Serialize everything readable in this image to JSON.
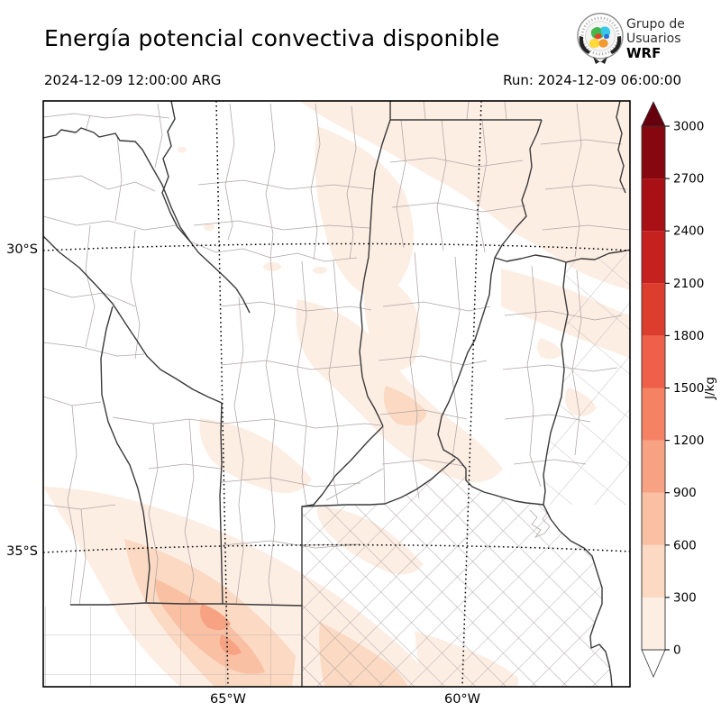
{
  "header": {
    "title": "Energía potencial convectiva disponible",
    "valid_time": "2024-12-09 12:00:00 ARG",
    "run_label": "Run: 2024-12-09 06:00:00"
  },
  "logo": {
    "line1": "Grupo de",
    "line2": "Usuarios",
    "line3": "WRF"
  },
  "axes": {
    "y_labels": [
      "30°S",
      "35°S"
    ],
    "x_labels": [
      "65°W",
      "60°W"
    ]
  },
  "colorbar": {
    "unit": "J/kg",
    "tick_labels": [
      "0",
      "300",
      "600",
      "900",
      "1200",
      "1500",
      "1800",
      "2100",
      "2400",
      "2700",
      "3000"
    ],
    "segment_colors": [
      "#fdeee4",
      "#fbd9c2",
      "#f9c0a3",
      "#f7a383",
      "#f58363",
      "#ee6049",
      "#dd3d2d",
      "#c5211e",
      "#a91016",
      "#870711"
    ],
    "over_color": "#67000d",
    "under_color": "#ffffff"
  },
  "map": {
    "background": "#ffffff",
    "frame_color": "#000000",
    "province_line_color": "#3a3a3a",
    "department_line_color": "#ada5a3",
    "graticule_color": "#000000",
    "palette_levels": {
      "lv1": "#fdeee4",
      "lv2": "#fbd9c2",
      "lv3": "#f9c0a3",
      "lv4": "#f7a383"
    }
  }
}
